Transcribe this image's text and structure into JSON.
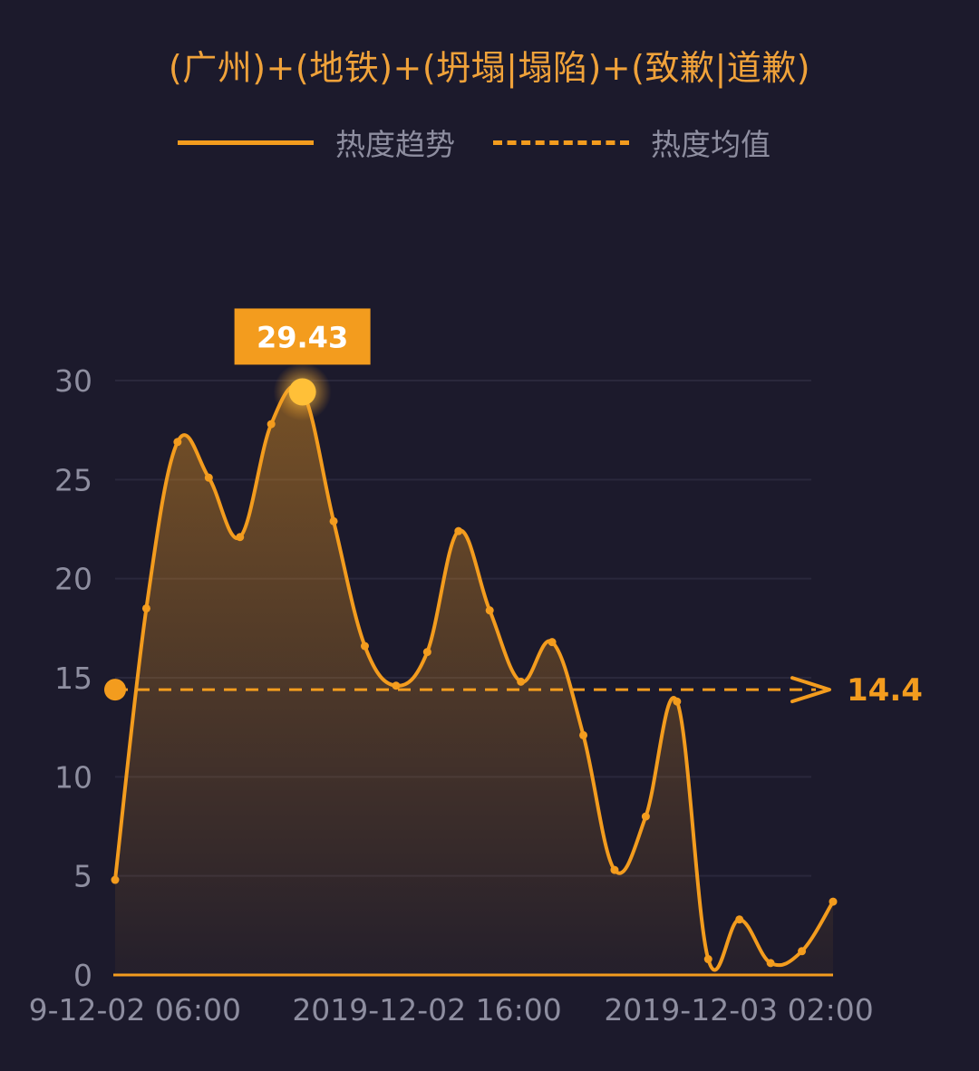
{
  "title": "(广州)+(地铁)+(坍塌|塌陷)+(致歉|道歉)",
  "legend": [
    {
      "label": "热度趋势",
      "style": "solid"
    },
    {
      "label": "热度均值",
      "style": "dashed"
    }
  ],
  "colors": {
    "background": "#1c1a2c",
    "accent": "#f39c1e",
    "peak_box": "#f39c1e",
    "axis_text": "#8e8ea0"
  },
  "chart_data": {
    "type": "area",
    "title": "(广州)+(地铁)+(坍塌|塌陷)+(致歉|道歉)",
    "xlabel": "",
    "ylabel": "",
    "ylim": [
      0,
      30
    ],
    "yticks": [
      0,
      5,
      10,
      15,
      20,
      25,
      30
    ],
    "xtick_labels": [
      "9-12-02 06:00",
      "2019-12-02 16:00",
      "2019-12-03 02:00"
    ],
    "series": [
      {
        "name": "热度趋势",
        "values": [
          4.8,
          18.5,
          26.9,
          25.1,
          22.1,
          27.8,
          29.43,
          22.9,
          16.6,
          14.6,
          16.3,
          22.4,
          18.4,
          14.8,
          16.8,
          12.1,
          5.3,
          8.0,
          13.8,
          0.8,
          2.8,
          0.6,
          1.2,
          3.7
        ]
      }
    ],
    "average": {
      "name": "热度均值",
      "value": 14.4,
      "label": "14.4"
    },
    "peak": {
      "index": 6,
      "value": 29.43,
      "label": "29.43"
    },
    "grid": true,
    "legend_position": "top"
  }
}
